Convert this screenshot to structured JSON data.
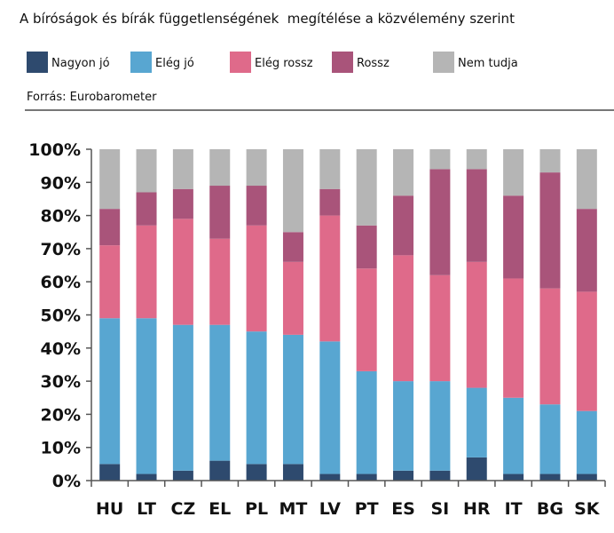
{
  "title": "A bíróságok és bírák függetlenségének  megítélése a közvélemény szerint",
  "source": "Forrás: Eurobarometer",
  "chart_data": {
    "type": "bar",
    "stacked": true,
    "categories": [
      "HU",
      "LT",
      "CZ",
      "EL",
      "PL",
      "MT",
      "LV",
      "PT",
      "ES",
      "SI",
      "HR",
      "IT",
      "BG",
      "SK"
    ],
    "series": [
      {
        "name": "Nagyon jó",
        "color": "#2e4a6e",
        "values": [
          5,
          2,
          3,
          6,
          5,
          5,
          2,
          2,
          3,
          3,
          7,
          2,
          2,
          2
        ]
      },
      {
        "name": "Elég jó",
        "color": "#58a6d1",
        "values": [
          44,
          47,
          44,
          41,
          40,
          39,
          40,
          31,
          27,
          27,
          21,
          23,
          21,
          19
        ]
      },
      {
        "name": "Elég rossz",
        "color": "#df6a8a",
        "values": [
          22,
          28,
          32,
          26,
          32,
          22,
          38,
          31,
          38,
          32,
          38,
          36,
          35,
          36
        ]
      },
      {
        "name": "Rossz",
        "color": "#a9547a",
        "values": [
          11,
          10,
          9,
          16,
          12,
          9,
          8,
          13,
          18,
          32,
          28,
          25,
          35,
          25
        ]
      },
      {
        "name": "Nem tudja",
        "color": "#b5b5b5",
        "values": [
          18,
          13,
          12,
          11,
          11,
          25,
          12,
          23,
          14,
          6,
          6,
          14,
          7,
          18
        ]
      }
    ],
    "ylim": [
      0,
      100
    ],
    "yticks": [
      "0%",
      "10%",
      "20%",
      "30%",
      "40%",
      "50%",
      "60%",
      "70%",
      "80%",
      "90%",
      "100%"
    ],
    "legend_position": "top",
    "grid": false
  }
}
